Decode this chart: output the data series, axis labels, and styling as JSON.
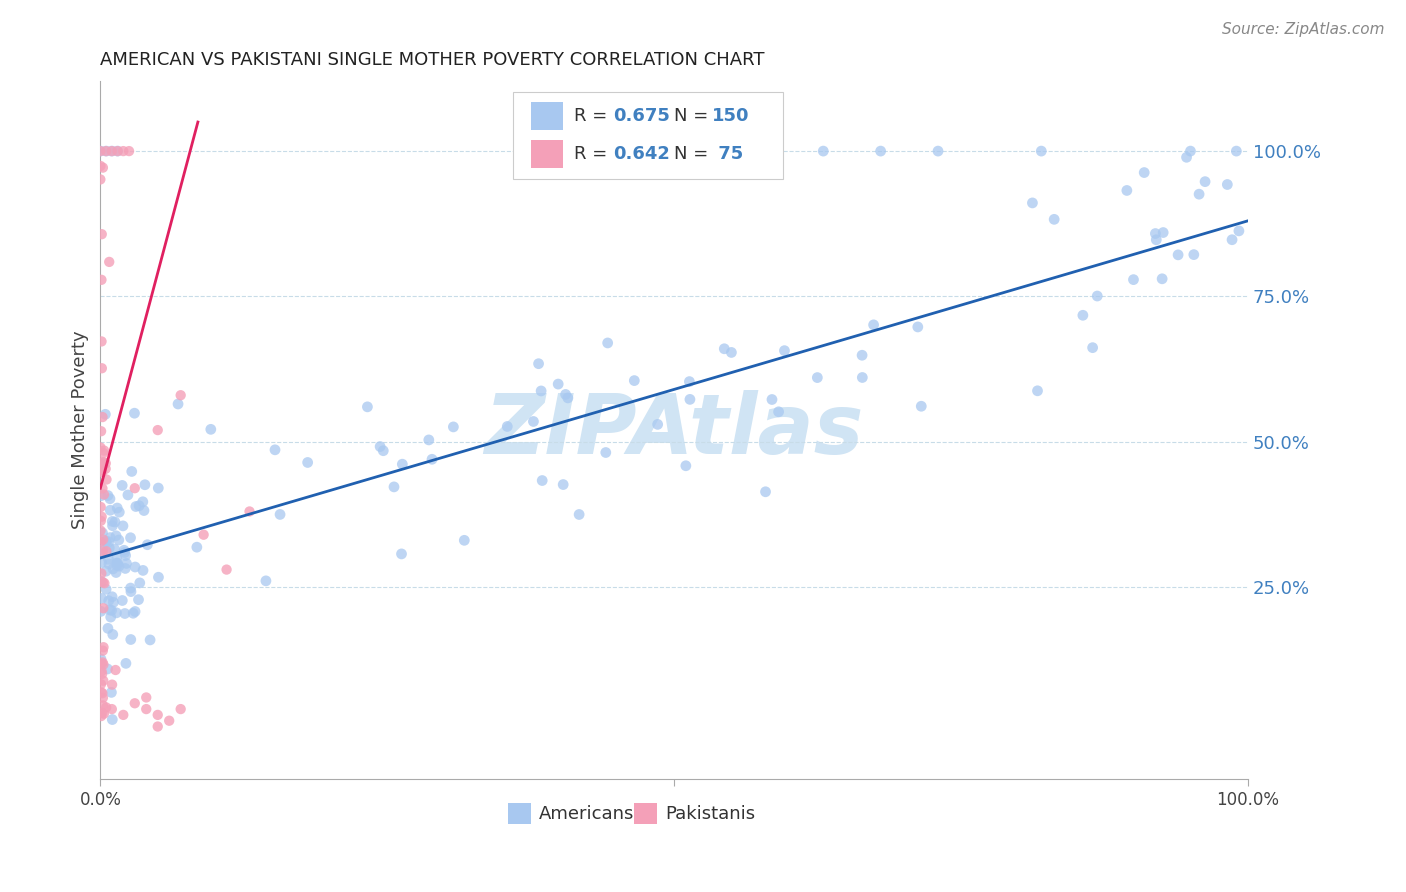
{
  "title": "AMERICAN VS PAKISTANI SINGLE MOTHER POVERTY CORRELATION CHART",
  "source": "Source: ZipAtlas.com",
  "ylabel": "Single Mother Poverty",
  "watermark": "ZIPAtlas",
  "legend_am_R": 0.675,
  "legend_am_N": 150,
  "legend_pk_R": 0.642,
  "legend_pk_N": 75,
  "ytick_labels": [
    "100.0%",
    "75.0%",
    "50.0%",
    "25.0%"
  ],
  "ytick_positions": [
    1.0,
    0.75,
    0.5,
    0.25
  ],
  "xlim": [
    0,
    1.0
  ],
  "ylim": [
    -0.08,
    1.12
  ],
  "american_color": "#a8c8f0",
  "pakistani_color": "#f4a0b8",
  "american_line_color": "#2060b0",
  "pakistani_line_color": "#e02060",
  "background_color": "#ffffff",
  "grid_color": "#c8dce8",
  "title_color": "#222222",
  "right_tick_color": "#4080c0",
  "watermark_color": "#d0e4f4",
  "am_line_x0": 0.0,
  "am_line_y0": 0.3,
  "am_line_x1": 1.0,
  "am_line_y1": 0.88,
  "pk_line_x0": 0.0,
  "pk_line_y0": 0.42,
  "pk_line_x1": 0.085,
  "pk_line_y1": 1.05
}
